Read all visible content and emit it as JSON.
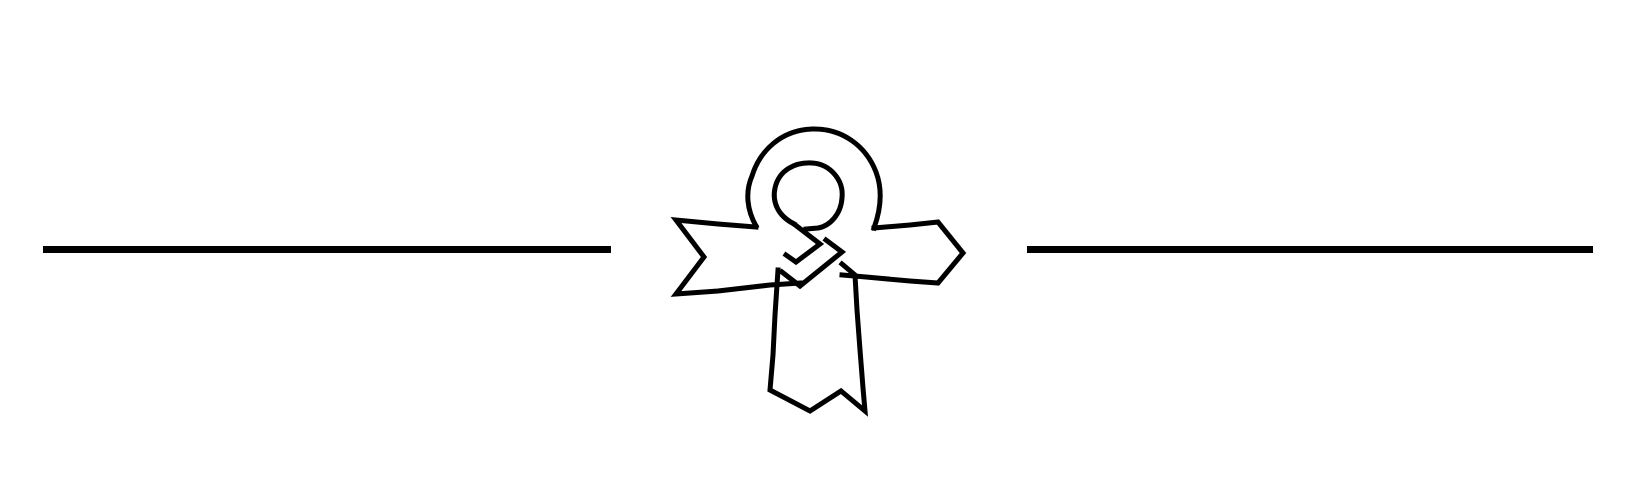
{
  "colors": {
    "background": "#ffffff",
    "ink": "#000000"
  },
  "emblem": {
    "icon": "ankh-cross-ornament-icon"
  }
}
